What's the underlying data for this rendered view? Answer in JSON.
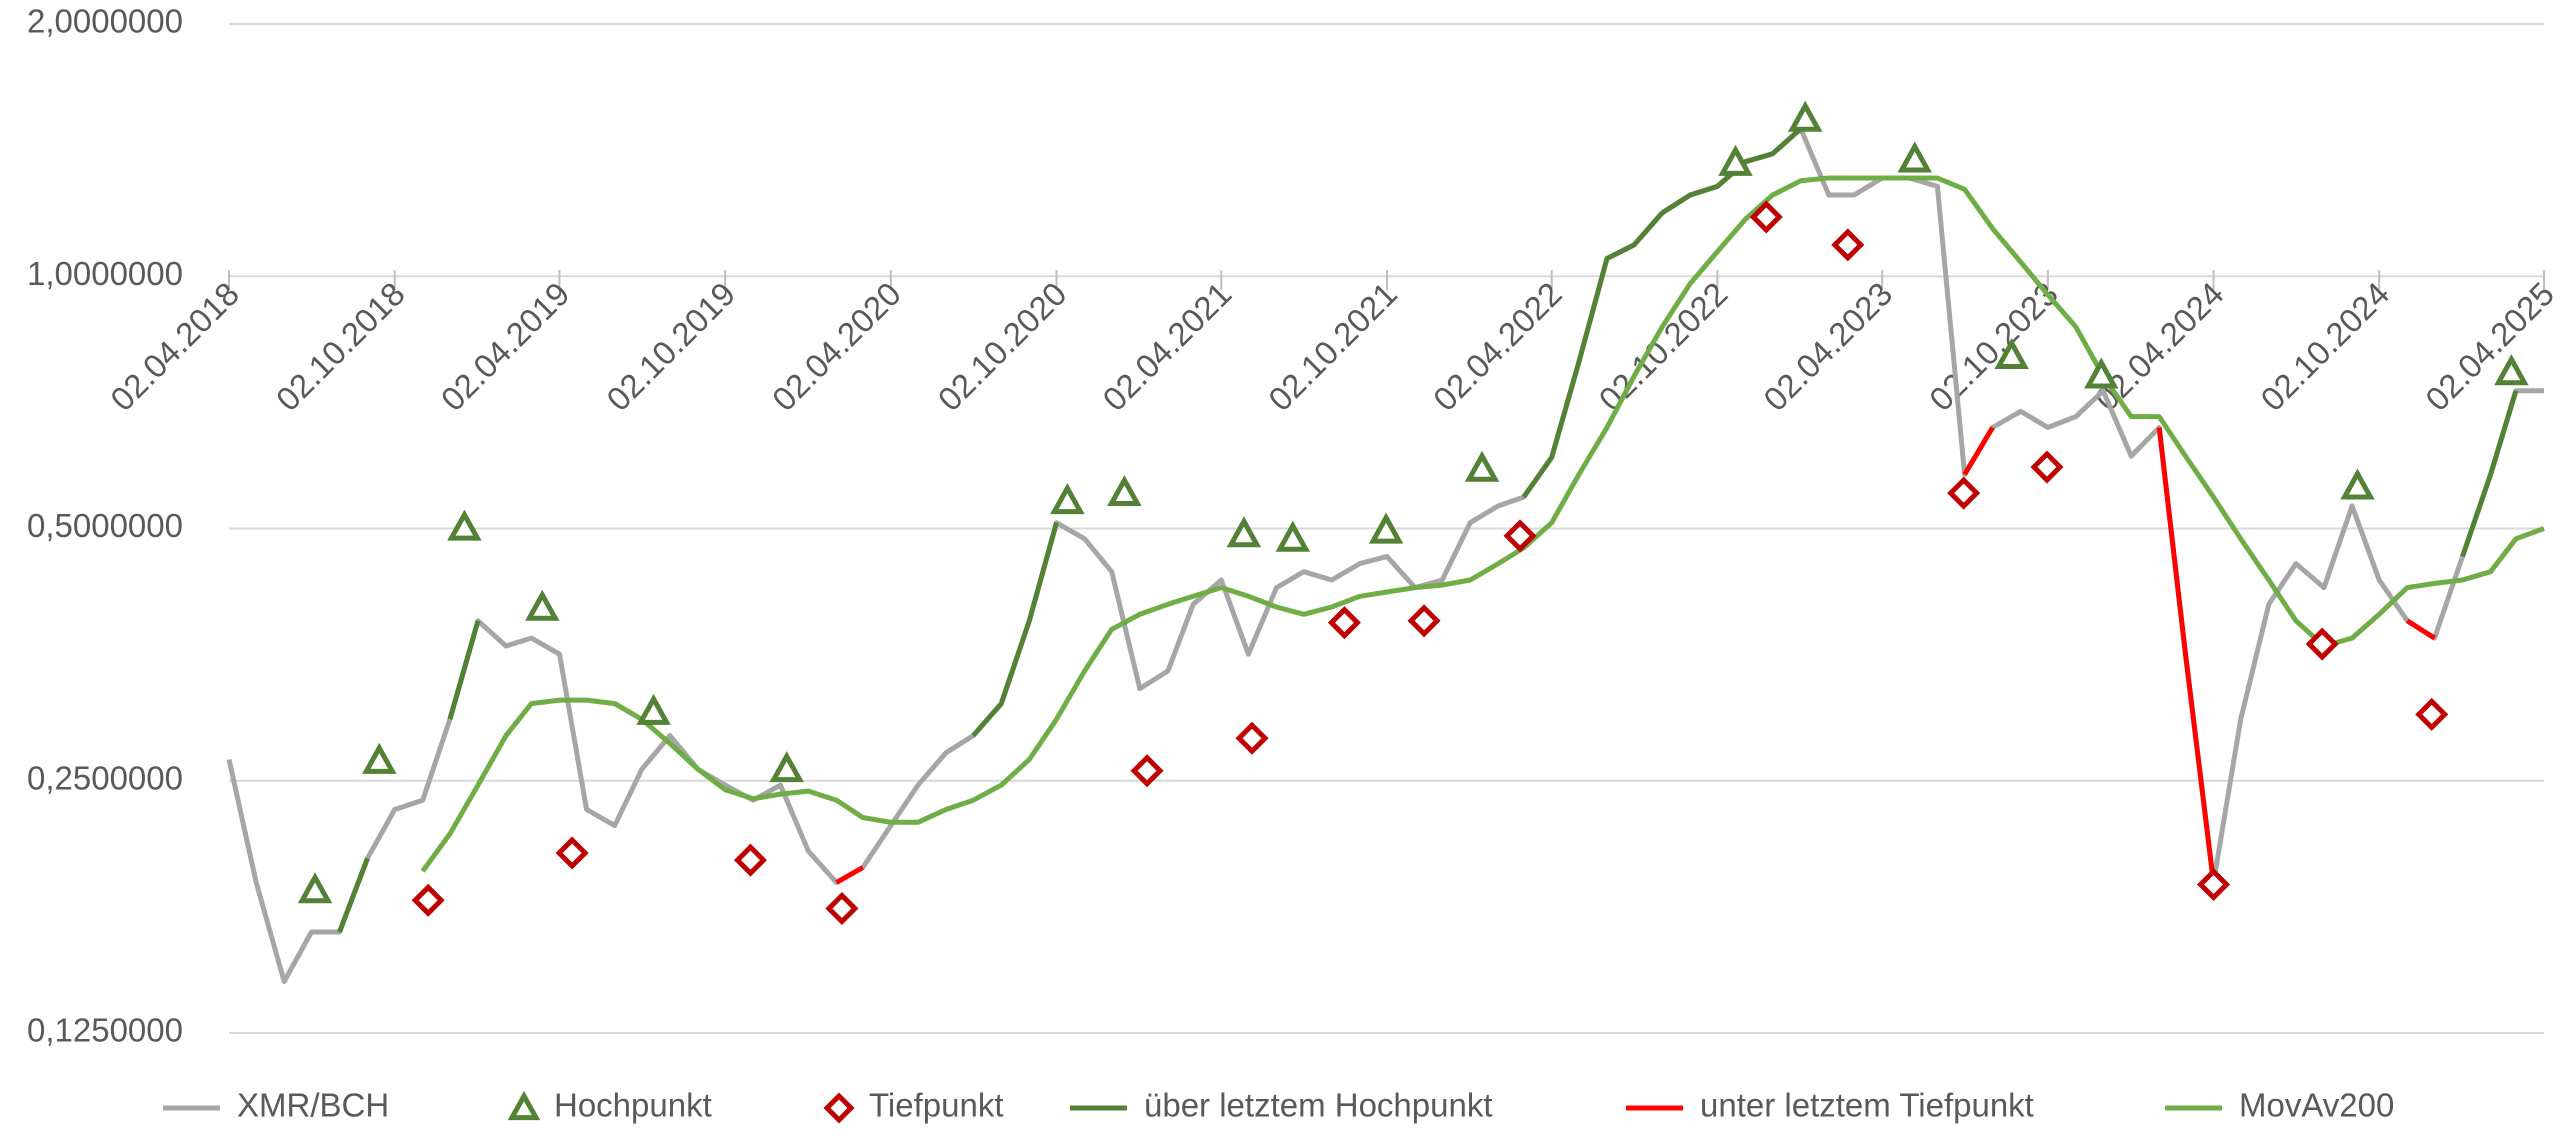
{
  "chart_data": {
    "type": "line",
    "log_scale": true,
    "grid": true,
    "legend": "bottom",
    "ylim": [
      0.125,
      2
    ],
    "yticks": [
      {
        "value": 0.125,
        "label": "0,1250000"
      },
      {
        "value": 0.25,
        "label": "0,2500000"
      },
      {
        "value": 0.5,
        "label": "0,5000000"
      },
      {
        "value": 1,
        "label": "1,0000000"
      },
      {
        "value": 2,
        "label": "2,0000000"
      }
    ],
    "xlim": [
      "02.04.2018",
      "02.04.2025"
    ],
    "xticks": [
      "02.04.2018",
      "02.10.2018",
      "02.04.2019",
      "02.10.2019",
      "02.04.2020",
      "02.10.2020",
      "02.04.2021",
      "02.10.2021",
      "02.04.2022",
      "02.10.2022",
      "02.04.2023",
      "02.10.2023",
      "02.04.2024",
      "02.10.2024",
      "02.04.2025"
    ],
    "x": [
      "02.04.2018",
      "02.05.2018",
      "02.06.2018",
      "02.07.2018",
      "02.08.2018",
      "02.09.2018",
      "02.10.2018",
      "02.11.2018",
      "02.12.2018",
      "02.01.2019",
      "02.02.2019",
      "02.03.2019",
      "02.04.2019",
      "02.05.2019",
      "02.06.2019",
      "02.07.2019",
      "02.08.2019",
      "02.09.2019",
      "02.10.2019",
      "02.11.2019",
      "02.12.2019",
      "02.01.2020",
      "02.02.2020",
      "02.03.2020",
      "02.04.2020",
      "02.05.2020",
      "02.06.2020",
      "02.07.2020",
      "02.08.2020",
      "02.09.2020",
      "02.10.2020",
      "02.11.2020",
      "02.12.2020",
      "02.01.2021",
      "02.02.2021",
      "02.03.2021",
      "02.04.2021",
      "02.05.2021",
      "02.06.2021",
      "02.07.2021",
      "02.08.2021",
      "02.09.2021",
      "02.10.2021",
      "02.11.2021",
      "02.12.2021",
      "02.01.2022",
      "02.02.2022",
      "02.03.2022",
      "02.04.2022",
      "02.05.2022",
      "02.06.2022",
      "02.07.2022",
      "02.08.2022",
      "02.09.2022",
      "02.10.2022",
      "02.11.2022",
      "02.12.2022",
      "02.01.2023",
      "02.02.2023",
      "02.03.2023",
      "02.04.2023",
      "02.05.2023",
      "02.06.2023",
      "02.07.2023",
      "02.08.2023",
      "02.09.2023",
      "02.10.2023",
      "02.11.2023",
      "02.12.2023",
      "02.01.2024",
      "02.02.2024",
      "02.03.2024",
      "02.04.2024",
      "02.05.2024",
      "02.06.2024",
      "02.07.2024",
      "02.08.2024",
      "02.09.2024",
      "02.10.2024",
      "02.11.2024",
      "02.12.2024",
      "02.01.2025",
      "02.02.2025",
      "02.03.2025",
      "02.04.2025"
    ],
    "series": [
      {
        "name": "XMR/BCH",
        "color": "#a6a6a6",
        "values": [
          0.265,
          0.189,
          0.144,
          0.165,
          0.165,
          0.202,
          0.231,
          0.237,
          0.296,
          0.388,
          0.362,
          0.37,
          0.354,
          0.231,
          0.221,
          0.258,
          0.283,
          0.258,
          0.247,
          0.237,
          0.247,
          0.206,
          0.189,
          0.197,
          0.221,
          0.247,
          0.27,
          0.283,
          0.309,
          0.388,
          0.508,
          0.486,
          0.444,
          0.322,
          0.338,
          0.406,
          0.434,
          0.354,
          0.425,
          0.444,
          0.434,
          0.454,
          0.463,
          0.425,
          0.434,
          0.508,
          0.532,
          0.545,
          0.608,
          0.79,
          1.05,
          1.09,
          1.19,
          1.25,
          1.28,
          1.37,
          1.4,
          1.5,
          1.25,
          1.25,
          1.31,
          1.31,
          1.28,
          0.58,
          0.66,
          0.69,
          0.66,
          0.68,
          0.73,
          0.61,
          0.66,
          0.354,
          0.189,
          0.296,
          0.406,
          0.454,
          0.425,
          0.532,
          0.434,
          0.388,
          0.37,
          0.463,
          0.58,
          0.73,
          0.73
        ]
      },
      {
        "name": "Hochpunkt",
        "color": "#538135",
        "marker": "triangle",
        "x": [
          "06.07.2018",
          "15.09.2018",
          "18.12.2018",
          "14.03.2019",
          "15.07.2019",
          "09.12.2019",
          "14.10.2020",
          "16.12.2020",
          "27.04.2021",
          "20.06.2021",
          "01.10.2021",
          "15.01.2022",
          "22.10.2022",
          "07.01.2023",
          "08.05.2023",
          "23.08.2023",
          "30.11.2023",
          "08.09.2024",
          "25.02.2025"
        ],
        "values": [
          0.185,
          0.264,
          0.501,
          0.402,
          0.302,
          0.258,
          0.539,
          0.551,
          0.492,
          0.486,
          0.497,
          0.589,
          1.365,
          1.541,
          1.378,
          0.803,
          0.761,
          0.561,
          0.768
        ]
      },
      {
        "name": "Tiefpunkt",
        "color": "#c00000",
        "marker": "diamond",
        "x": [
          "08.11.2018",
          "16.04.2019",
          "30.10.2019",
          "08.02.2020",
          "10.01.2021",
          "06.05.2021",
          "16.08.2021",
          "12.11.2021",
          "26.02.2022",
          "25.11.2022",
          "23.02.2023",
          "01.07.2023",
          "01.10.2023",
          "02.04.2024",
          "31.07.2024",
          "29.11.2024"
        ],
        "values": [
          0.18,
          0.205,
          0.201,
          0.176,
          0.257,
          0.281,
          0.386,
          0.388,
          0.49,
          1.177,
          1.09,
          0.551,
          0.592,
          0.188,
          0.364,
          0.3
        ]
      },
      {
        "name": "über letztem Hochpunkt",
        "color": "#548235",
        "values": [
          null,
          null,
          null,
          null,
          0.165,
          0.202,
          null,
          null,
          0.296,
          0.388,
          null,
          null,
          null,
          null,
          null,
          null,
          null,
          null,
          null,
          null,
          null,
          null,
          null,
          null,
          null,
          null,
          null,
          0.283,
          0.309,
          0.388,
          0.508,
          null,
          null,
          null,
          null,
          null,
          null,
          null,
          null,
          null,
          null,
          null,
          null,
          null,
          null,
          null,
          null,
          0.545,
          0.608,
          0.79,
          1.05,
          1.09,
          1.19,
          1.25,
          1.28,
          1.37,
          1.4,
          1.5,
          null,
          null,
          null,
          null,
          null,
          null,
          null,
          null,
          null,
          null,
          null,
          null,
          null,
          null,
          null,
          null,
          null,
          null,
          null,
          null,
          null,
          null,
          null,
          0.463,
          0.58,
          0.73,
          null
        ]
      },
      {
        "name": "unter letztem Tiefpunkt",
        "color": "#ff0000",
        "values": [
          null,
          null,
          null,
          null,
          null,
          null,
          null,
          null,
          null,
          null,
          null,
          null,
          null,
          null,
          null,
          null,
          null,
          null,
          null,
          null,
          null,
          null,
          0.189,
          0.197,
          null,
          null,
          null,
          null,
          null,
          null,
          null,
          null,
          null,
          null,
          null,
          null,
          null,
          null,
          null,
          null,
          null,
          null,
          null,
          null,
          null,
          null,
          null,
          null,
          null,
          null,
          null,
          null,
          null,
          null,
          null,
          null,
          null,
          null,
          null,
          null,
          null,
          null,
          null,
          0.58,
          0.66,
          null,
          null,
          null,
          null,
          null,
          0.66,
          0.354,
          0.189,
          null,
          null,
          null,
          null,
          null,
          null,
          0.388,
          0.37,
          null,
          null,
          null,
          null
        ]
      },
      {
        "name": "MovAv200",
        "color": "#70ad47",
        "values": [
          null,
          null,
          null,
          null,
          null,
          null,
          null,
          0.195,
          0.216,
          0.247,
          0.283,
          0.309,
          0.312,
          0.312,
          0.309,
          0.296,
          0.277,
          0.258,
          0.244,
          0.238,
          0.241,
          0.243,
          0.237,
          0.226,
          0.223,
          0.223,
          0.231,
          0.237,
          0.247,
          0.265,
          0.296,
          0.338,
          0.379,
          0.395,
          0.406,
          0.415,
          0.425,
          0.415,
          0.403,
          0.395,
          0.403,
          0.415,
          0.42,
          0.425,
          0.428,
          0.434,
          0.454,
          0.474,
          0.508,
          0.58,
          0.66,
          0.76,
          0.87,
          0.98,
          1.07,
          1.17,
          1.25,
          1.3,
          1.31,
          1.31,
          1.31,
          1.31,
          1.31,
          1.27,
          1.14,
          1.04,
          0.95,
          0.87,
          0.76,
          0.68,
          0.68,
          0.61,
          0.545,
          0.486,
          0.434,
          0.388,
          0.362,
          0.37,
          0.395,
          0.425,
          0.43,
          0.434,
          0.444,
          0.486,
          0.5
        ]
      }
    ]
  }
}
